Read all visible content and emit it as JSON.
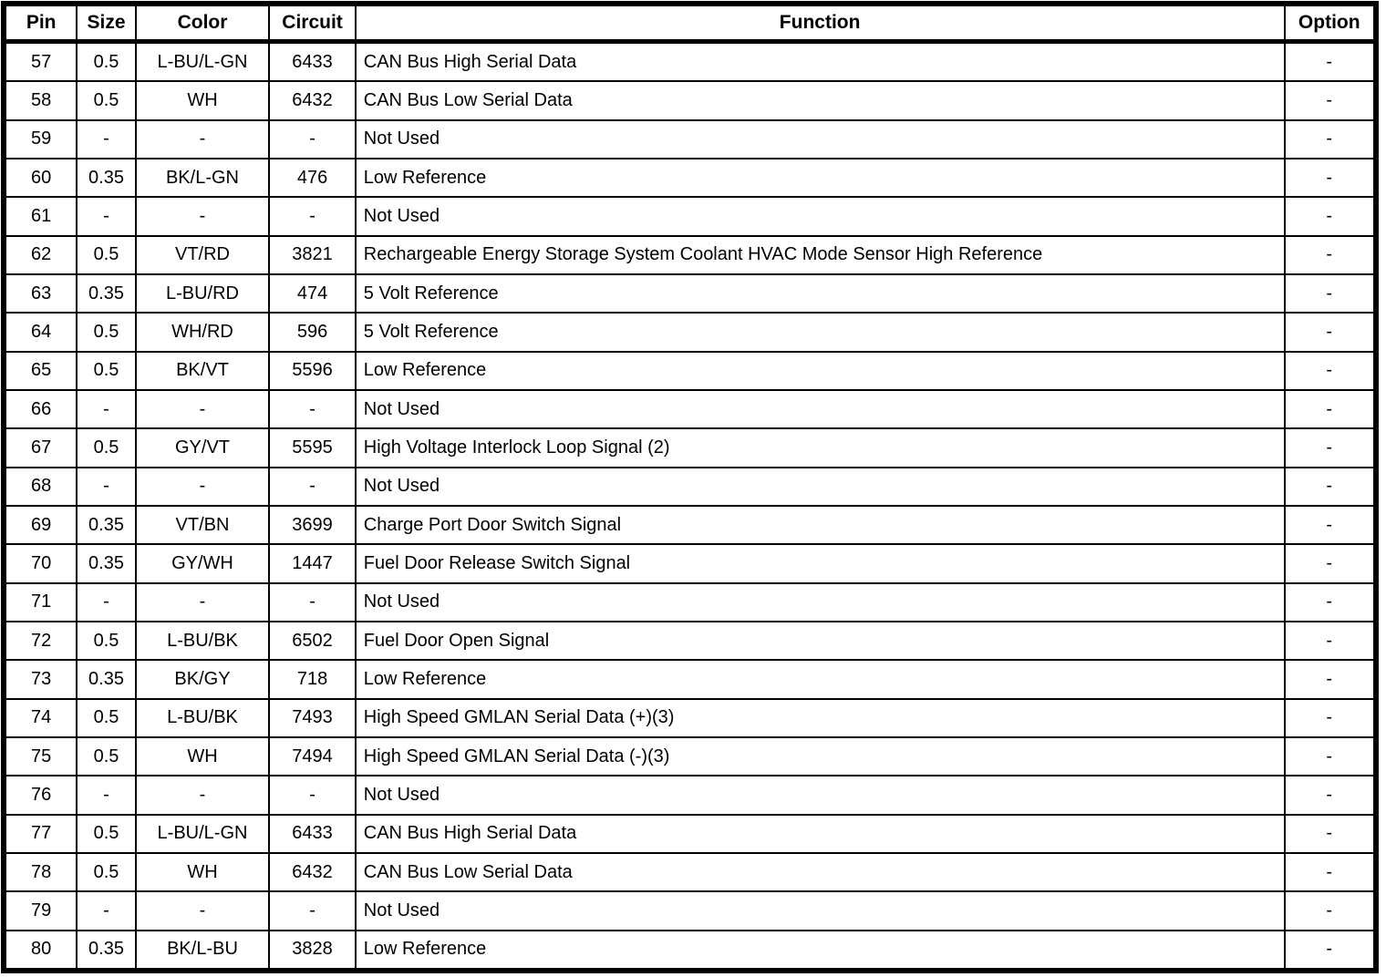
{
  "colors": {
    "border": "#000000",
    "background": "#ffffff",
    "text": "#000000"
  },
  "table": {
    "headers": [
      "Pin",
      "Size",
      "Color",
      "Circuit",
      "Function",
      "Option"
    ],
    "rows": [
      {
        "pin": "57",
        "size": "0.5",
        "color": "L-BU/L-GN",
        "circuit": "6433",
        "function": "CAN Bus High Serial Data",
        "option": "-"
      },
      {
        "pin": "58",
        "size": "0.5",
        "color": "WH",
        "circuit": "6432",
        "function": "CAN Bus Low Serial Data",
        "option": "-"
      },
      {
        "pin": "59",
        "size": "-",
        "color": "-",
        "circuit": "-",
        "function": "Not Used",
        "option": "-"
      },
      {
        "pin": "60",
        "size": "0.35",
        "color": "BK/L-GN",
        "circuit": "476",
        "function": "Low Reference",
        "option": "-"
      },
      {
        "pin": "61",
        "size": "-",
        "color": "-",
        "circuit": "-",
        "function": "Not Used",
        "option": "-"
      },
      {
        "pin": "62",
        "size": "0.5",
        "color": "VT/RD",
        "circuit": "3821",
        "function": "Rechargeable Energy Storage System Coolant HVAC Mode Sensor High Reference",
        "option": "-"
      },
      {
        "pin": "63",
        "size": "0.35",
        "color": "L-BU/RD",
        "circuit": "474",
        "function": "5 Volt Reference",
        "option": "-"
      },
      {
        "pin": "64",
        "size": "0.5",
        "color": "WH/RD",
        "circuit": "596",
        "function": "5 Volt Reference",
        "option": "-"
      },
      {
        "pin": "65",
        "size": "0.5",
        "color": "BK/VT",
        "circuit": "5596",
        "function": "Low Reference",
        "option": "-"
      },
      {
        "pin": "66",
        "size": "-",
        "color": "-",
        "circuit": "-",
        "function": "Not Used",
        "option": "-"
      },
      {
        "pin": "67",
        "size": "0.5",
        "color": "GY/VT",
        "circuit": "5595",
        "function": "High Voltage Interlock Loop Signal (2)",
        "option": "-"
      },
      {
        "pin": "68",
        "size": "-",
        "color": "-",
        "circuit": "-",
        "function": "Not Used",
        "option": "-"
      },
      {
        "pin": "69",
        "size": "0.35",
        "color": "VT/BN",
        "circuit": "3699",
        "function": "Charge Port Door Switch Signal",
        "option": "-"
      },
      {
        "pin": "70",
        "size": "0.35",
        "color": "GY/WH",
        "circuit": "1447",
        "function": "Fuel Door Release Switch Signal",
        "option": "-"
      },
      {
        "pin": "71",
        "size": "-",
        "color": "-",
        "circuit": "-",
        "function": "Not Used",
        "option": "-"
      },
      {
        "pin": "72",
        "size": "0.5",
        "color": "L-BU/BK",
        "circuit": "6502",
        "function": "Fuel Door Open Signal",
        "option": "-"
      },
      {
        "pin": "73",
        "size": "0.35",
        "color": "BK/GY",
        "circuit": "718",
        "function": "Low Reference",
        "option": "-"
      },
      {
        "pin": "74",
        "size": "0.5",
        "color": "L-BU/BK",
        "circuit": "7493",
        "function": "High Speed GMLAN Serial Data (+)(3)",
        "option": "-"
      },
      {
        "pin": "75",
        "size": "0.5",
        "color": "WH",
        "circuit": "7494",
        "function": "High Speed GMLAN Serial Data (-)(3)",
        "option": "-"
      },
      {
        "pin": "76",
        "size": "-",
        "color": "-",
        "circuit": "-",
        "function": "Not Used",
        "option": "-"
      },
      {
        "pin": "77",
        "size": "0.5",
        "color": "L-BU/L-GN",
        "circuit": "6433",
        "function": "CAN Bus High Serial Data",
        "option": "-"
      },
      {
        "pin": "78",
        "size": "0.5",
        "color": "WH",
        "circuit": "6432",
        "function": "CAN Bus Low Serial Data",
        "option": "-"
      },
      {
        "pin": "79",
        "size": "-",
        "color": "-",
        "circuit": "-",
        "function": "Not Used",
        "option": "-"
      },
      {
        "pin": "80",
        "size": "0.35",
        "color": "BK/L-BU",
        "circuit": "3828",
        "function": "Low Reference",
        "option": "-"
      }
    ]
  }
}
